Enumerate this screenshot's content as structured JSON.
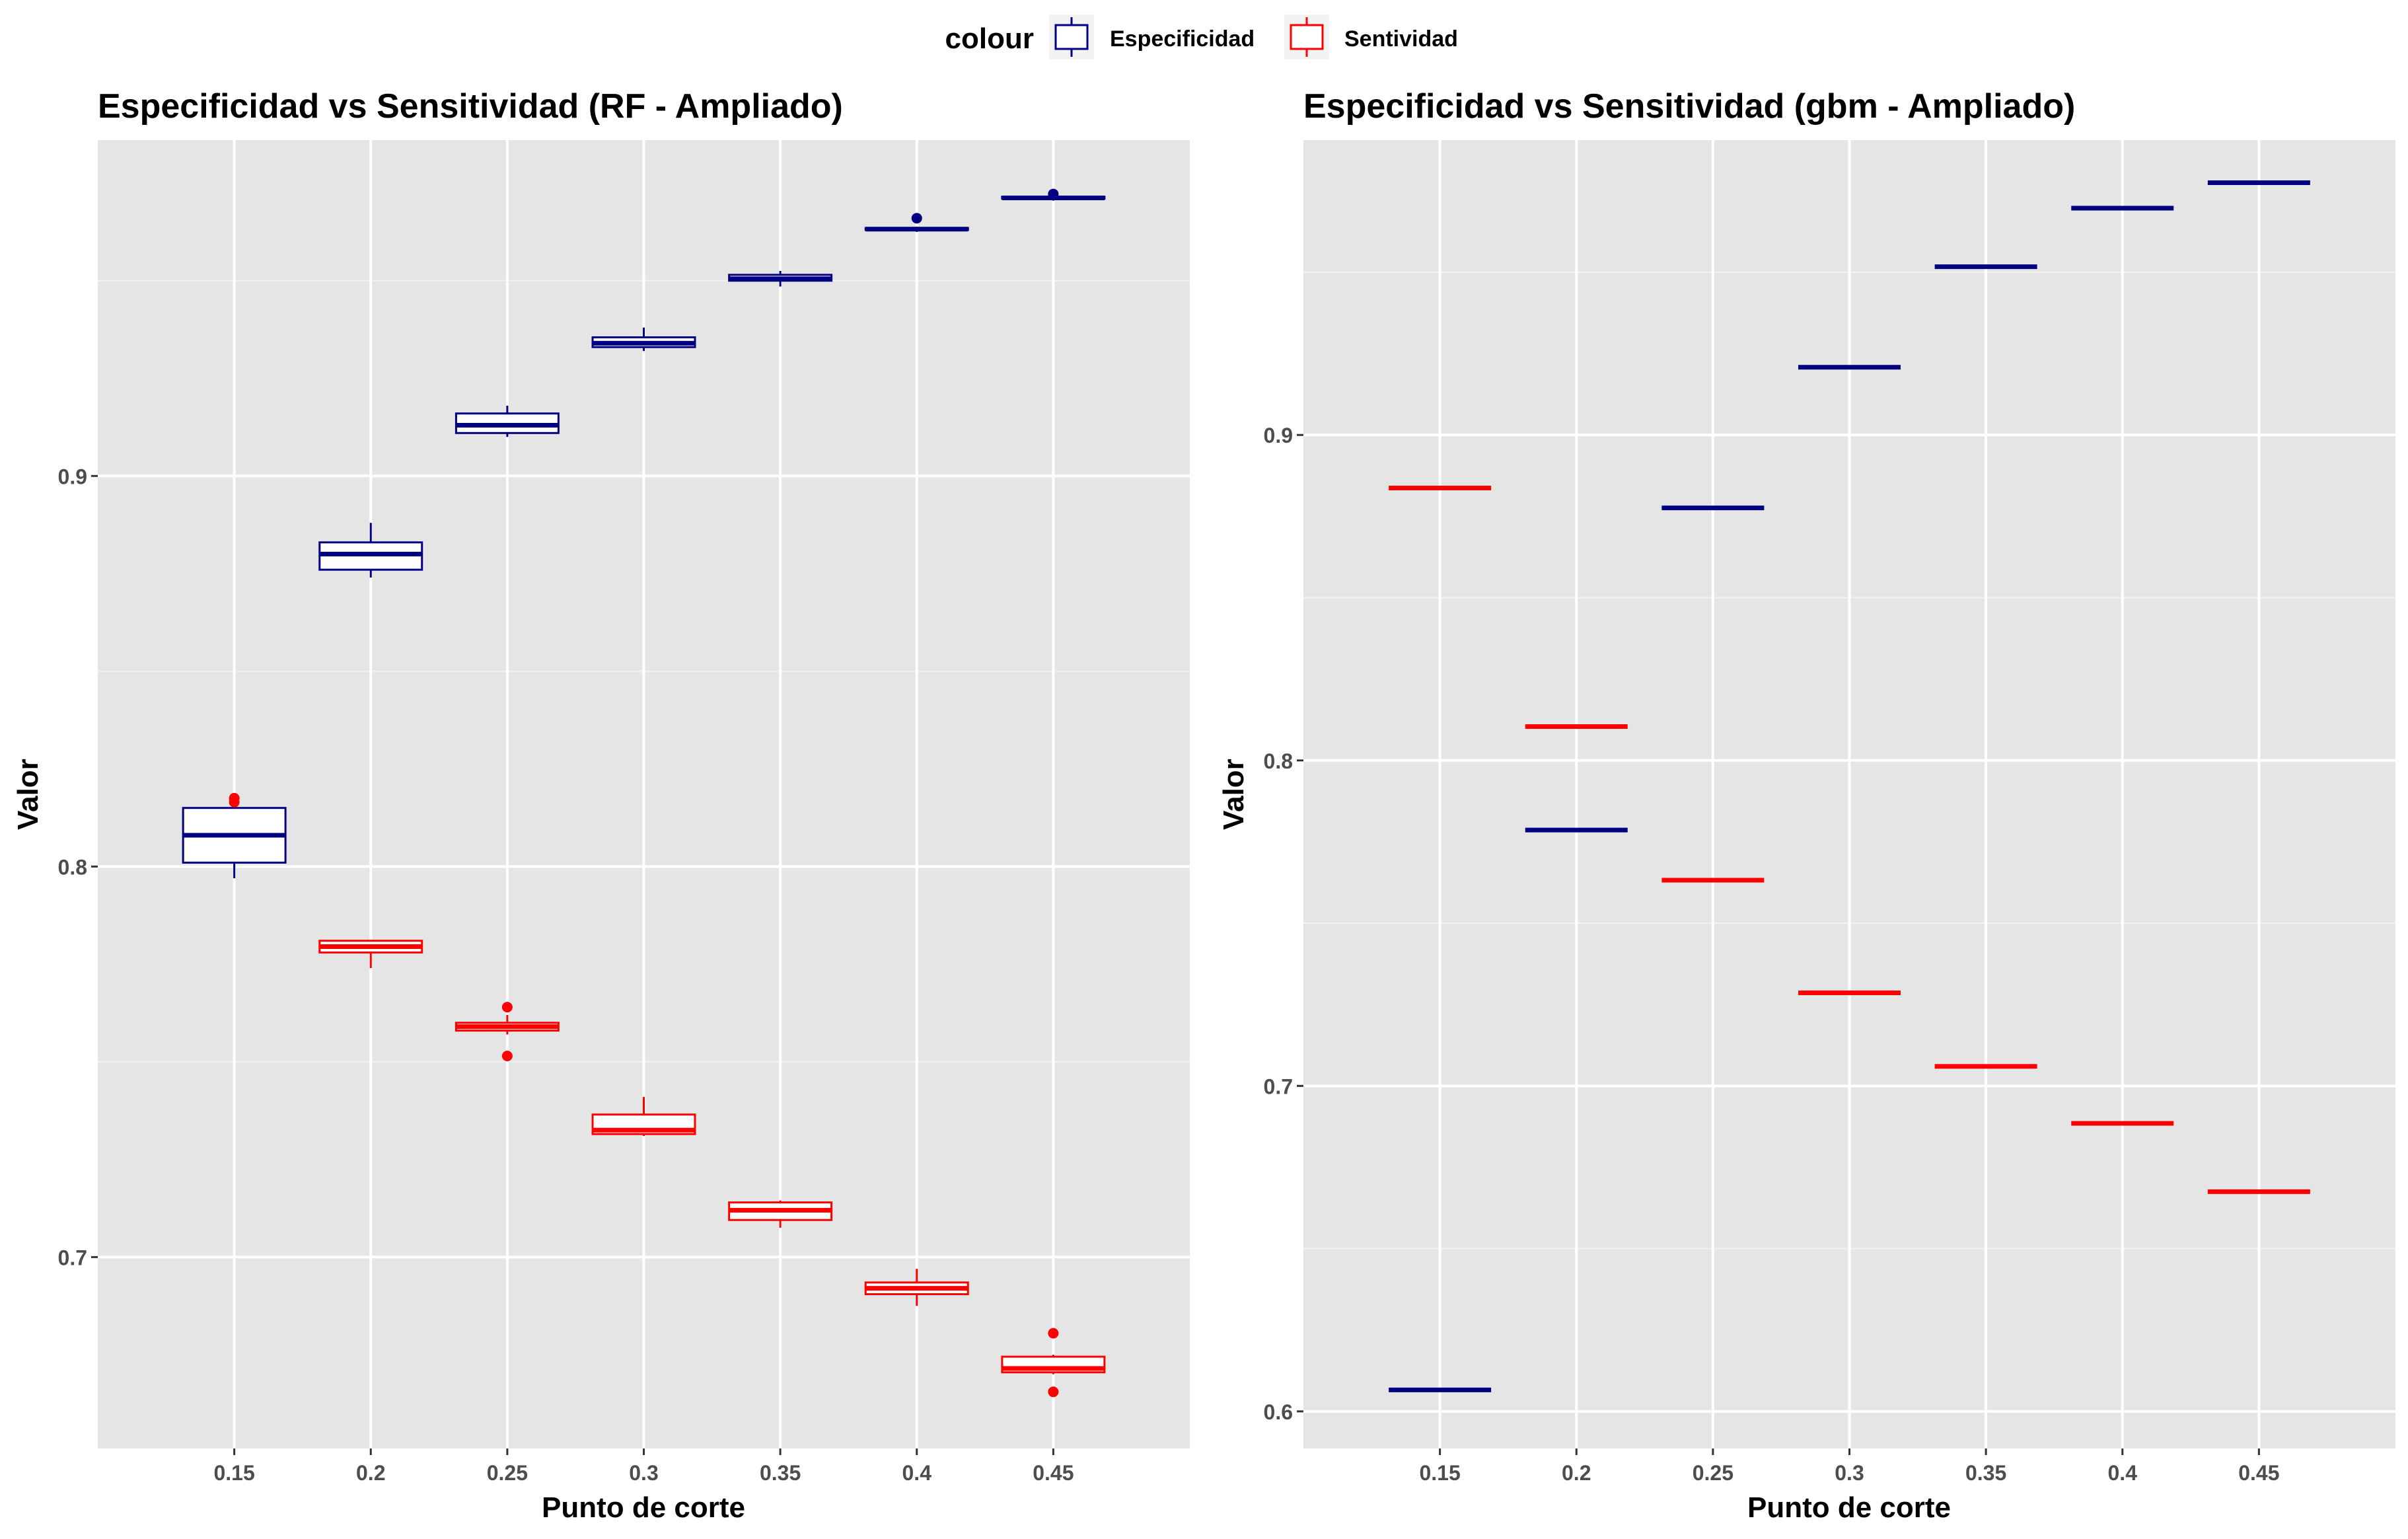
{
  "legend": {
    "title": "colour",
    "items": [
      {
        "label": "Especificidad",
        "color": "#000080"
      },
      {
        "label": "Sentividad",
        "color": "#FF0000"
      }
    ]
  },
  "chart_data": [
    {
      "type": "box",
      "title": "Especificidad vs Sensitividad (RF - Ampliado)",
      "xlabel": "Punto de corte",
      "ylabel": "Valor",
      "categories": [
        "0.15",
        "0.2",
        "0.25",
        "0.3",
        "0.35",
        "0.4",
        "0.45"
      ],
      "ylim": [
        0.651,
        0.986
      ],
      "yticks": [
        0.7,
        0.8,
        0.9
      ],
      "ytick_labels": [
        "0.7",
        "0.8",
        "0.9"
      ],
      "grid": true,
      "series": [
        {
          "name": "Especificidad",
          "color": "#000080",
          "boxes": [
            {
              "lw": 0.797,
              "q1": 0.801,
              "median": 0.808,
              "q3": 0.815,
              "uw": 0.817,
              "outliers": []
            },
            {
              "lw": 0.874,
              "q1": 0.876,
              "median": 0.88,
              "q3": 0.883,
              "uw": 0.888,
              "outliers": []
            },
            {
              "lw": 0.91,
              "q1": 0.911,
              "median": 0.913,
              "q3": 0.916,
              "uw": 0.918,
              "outliers": []
            },
            {
              "lw": 0.932,
              "q1": 0.933,
              "median": 0.934,
              "q3": 0.9355,
              "uw": 0.938,
              "outliers": []
            },
            {
              "lw": 0.9485,
              "q1": 0.95,
              "median": 0.9505,
              "q3": 0.9515,
              "uw": 0.9525,
              "outliers": []
            },
            {
              "lw": 0.9625,
              "q1": 0.963,
              "median": 0.9632,
              "q3": 0.9635,
              "uw": 0.9638,
              "outliers": [
                0.966
              ]
            },
            {
              "lw": 0.9705,
              "q1": 0.971,
              "median": 0.9712,
              "q3": 0.9715,
              "uw": 0.972,
              "outliers": [
                0.9722
              ]
            }
          ]
        },
        {
          "name": "Sentividad",
          "color": "#FF0000",
          "boxes": [
            {
              "lw": null,
              "q1": null,
              "median": null,
              "q3": null,
              "uw": null,
              "outliers": [
                0.8165,
                0.8175
              ]
            },
            {
              "lw": 0.774,
              "q1": 0.778,
              "median": 0.7795,
              "q3": 0.781,
              "uw": 0.781,
              "outliers": []
            },
            {
              "lw": 0.757,
              "q1": 0.758,
              "median": 0.759,
              "q3": 0.76,
              "uw": 0.762,
              "outliers": [
                0.764,
                0.7515
              ]
            },
            {
              "lw": 0.731,
              "q1": 0.7315,
              "median": 0.7325,
              "q3": 0.7365,
              "uw": 0.741,
              "outliers": []
            },
            {
              "lw": 0.7075,
              "q1": 0.7095,
              "median": 0.712,
              "q3": 0.714,
              "uw": 0.7145,
              "outliers": []
            },
            {
              "lw": 0.6875,
              "q1": 0.6905,
              "median": 0.692,
              "q3": 0.6935,
              "uw": 0.697,
              "outliers": []
            },
            {
              "lw": 0.67,
              "q1": 0.6705,
              "median": 0.6715,
              "q3": 0.6745,
              "uw": 0.675,
              "outliers": [
                0.6805,
                0.6655
              ]
            }
          ]
        }
      ]
    },
    {
      "type": "box",
      "title": "Especificidad vs Sensitividad (gbm - Ampliado)",
      "xlabel": "Punto de corte",
      "ylabel": "Valor",
      "categories": [
        "0.15",
        "0.2",
        "0.25",
        "0.3",
        "0.35",
        "0.4",
        "0.45"
      ],
      "ylim": [
        0.5886,
        0.9906
      ],
      "yticks": [
        0.6,
        0.7,
        0.8,
        0.9
      ],
      "ytick_labels": [
        "0.6",
        "0.7",
        "0.8",
        "0.9"
      ],
      "grid": true,
      "series": [
        {
          "name": "Especificidad",
          "color": "#000080",
          "values": [
            0.6066,
            0.7786,
            0.8776,
            0.9208,
            0.9517,
            0.9697,
            0.9775
          ]
        },
        {
          "name": "Sentividad",
          "color": "#FF0000",
          "values": [
            0.8837,
            0.8104,
            0.7632,
            0.7286,
            0.706,
            0.6885,
            0.6675
          ]
        }
      ]
    }
  ]
}
